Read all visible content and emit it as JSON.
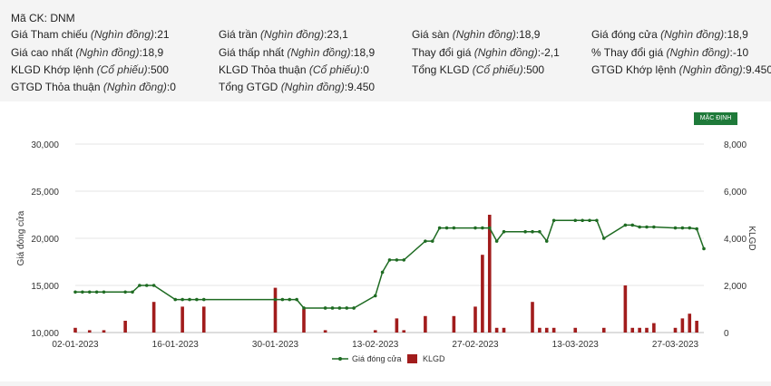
{
  "stock": {
    "ticker_line": "Mã CK: DNM",
    "fields": [
      {
        "label": "Giá Tham chiếu",
        "unit": "(Nghìn đồng)",
        "value": "21"
      },
      {
        "label": "Giá trần",
        "unit": "(Nghìn đồng)",
        "value": "23,1"
      },
      {
        "label": "Giá sàn",
        "unit": "(Nghìn đồng)",
        "value": "18,9"
      },
      {
        "label": "Giá đóng cửa",
        "unit": "(Nghìn đồng)",
        "value": "18,9"
      },
      {
        "label": "Giá cao nhất",
        "unit": "(Nghìn đồng)",
        "value": "18,9"
      },
      {
        "label": "Giá thấp nhất",
        "unit": "(Nghìn đồng)",
        "value": "18,9"
      },
      {
        "label": "Thay đổi giá",
        "unit": "(Nghìn đồng)",
        "value": "-2,1"
      },
      {
        "label": "% Thay đổi giá",
        "unit": "(Nghìn đồng)",
        "value": "-10"
      },
      {
        "label": "KLGD Khớp lệnh",
        "unit": "(Cổ phiếu)",
        "value": "500"
      },
      {
        "label": "KLGD Thỏa thuận",
        "unit": "(Cổ phiếu)",
        "value": "0"
      },
      {
        "label": "Tổng KLGD",
        "unit": "(Cổ phiếu)",
        "value": "500"
      },
      {
        "label": "GTGD Khớp lệnh",
        "unit": "(Nghìn đồng)",
        "value": "9.450"
      },
      {
        "label": "GTGD Thỏa thuận",
        "unit": "(Nghìn đồng)",
        "value": "0"
      },
      {
        "label": "Tổng GTGD",
        "unit": "(Nghìn đồng)",
        "value": "9.450"
      }
    ]
  },
  "default_button": "MẶC ĐỊNH",
  "chart_data": {
    "type": "bar+line",
    "ylabel_left": "Giá đóng cửa",
    "ylabel_right": "KLGD",
    "ylim_left": [
      10000,
      30000
    ],
    "ylim_right": [
      0,
      8000
    ],
    "y_ticks_left": [
      "10,000",
      "15,000",
      "20,000",
      "25,000",
      "30,000"
    ],
    "y_ticks_right": [
      "0",
      "2,000",
      "4,000",
      "6,000",
      "8,000"
    ],
    "x_ticks": [
      "02-01-2023",
      "16-01-2023",
      "30-01-2023",
      "13-02-2023",
      "27-02-2023",
      "13-03-2023",
      "27-03-2023"
    ],
    "date_range": [
      "2023-01-02",
      "2023-03-31"
    ],
    "legend": [
      "Giá đóng cửa",
      "KLGD"
    ],
    "colors": {
      "line": "#1e6b22",
      "bar": "#a11c1c",
      "grid": "#e6e6e6"
    },
    "price": [
      [
        "2023-01-02",
        14300
      ],
      [
        "2023-01-03",
        14300
      ],
      [
        "2023-01-04",
        14300
      ],
      [
        "2023-01-05",
        14300
      ],
      [
        "2023-01-06",
        14300
      ],
      [
        "2023-01-09",
        14300
      ],
      [
        "2023-01-10",
        14300
      ],
      [
        "2023-01-11",
        15000
      ],
      [
        "2023-01-12",
        15000
      ],
      [
        "2023-01-13",
        15000
      ],
      [
        "2023-01-16",
        13500
      ],
      [
        "2023-01-17",
        13500
      ],
      [
        "2023-01-18",
        13500
      ],
      [
        "2023-01-19",
        13500
      ],
      [
        "2023-01-20",
        13500
      ],
      [
        "2023-01-30",
        13500
      ],
      [
        "2023-01-31",
        13500
      ],
      [
        "2023-02-01",
        13500
      ],
      [
        "2023-02-02",
        13500
      ],
      [
        "2023-02-03",
        12600
      ],
      [
        "2023-02-06",
        12600
      ],
      [
        "2023-02-07",
        12600
      ],
      [
        "2023-02-08",
        12600
      ],
      [
        "2023-02-09",
        12600
      ],
      [
        "2023-02-10",
        12600
      ],
      [
        "2023-02-13",
        13900
      ],
      [
        "2023-02-14",
        16400
      ],
      [
        "2023-02-15",
        17700
      ],
      [
        "2023-02-16",
        17700
      ],
      [
        "2023-02-17",
        17700
      ],
      [
        "2023-02-20",
        19700
      ],
      [
        "2023-02-21",
        19700
      ],
      [
        "2023-02-22",
        21100
      ],
      [
        "2023-02-23",
        21100
      ],
      [
        "2023-02-24",
        21100
      ],
      [
        "2023-02-27",
        21100
      ],
      [
        "2023-02-28",
        21100
      ],
      [
        "2023-03-01",
        21100
      ],
      [
        "2023-03-02",
        19700
      ],
      [
        "2023-03-03",
        20700
      ],
      [
        "2023-03-06",
        20700
      ],
      [
        "2023-03-07",
        20700
      ],
      [
        "2023-03-08",
        20700
      ],
      [
        "2023-03-09",
        19700
      ],
      [
        "2023-03-10",
        21900
      ],
      [
        "2023-03-13",
        21900
      ],
      [
        "2023-03-14",
        21900
      ],
      [
        "2023-03-15",
        21900
      ],
      [
        "2023-03-16",
        21900
      ],
      [
        "2023-03-17",
        20000
      ],
      [
        "2023-03-20",
        21400
      ],
      [
        "2023-03-21",
        21400
      ],
      [
        "2023-03-22",
        21200
      ],
      [
        "2023-03-23",
        21200
      ],
      [
        "2023-03-24",
        21200
      ],
      [
        "2023-03-27",
        21100
      ],
      [
        "2023-03-28",
        21100
      ],
      [
        "2023-03-29",
        21100
      ],
      [
        "2023-03-30",
        21000
      ],
      [
        "2023-03-31",
        18900
      ]
    ],
    "volume": [
      [
        "2023-01-02",
        200
      ],
      [
        "2023-01-04",
        100
      ],
      [
        "2023-01-06",
        100
      ],
      [
        "2023-01-09",
        500
      ],
      [
        "2023-01-13",
        1300
      ],
      [
        "2023-01-17",
        1100
      ],
      [
        "2023-01-20",
        1100
      ],
      [
        "2023-01-30",
        1900
      ],
      [
        "2023-02-03",
        1000
      ],
      [
        "2023-02-06",
        100
      ],
      [
        "2023-02-13",
        100
      ],
      [
        "2023-02-16",
        600
      ],
      [
        "2023-02-17",
        100
      ],
      [
        "2023-02-20",
        700
      ],
      [
        "2023-02-24",
        700
      ],
      [
        "2023-02-27",
        1100
      ],
      [
        "2023-02-28",
        3300
      ],
      [
        "2023-03-01",
        5000
      ],
      [
        "2023-03-02",
        200
      ],
      [
        "2023-03-03",
        200
      ],
      [
        "2023-03-07",
        1300
      ],
      [
        "2023-03-08",
        200
      ],
      [
        "2023-03-09",
        200
      ],
      [
        "2023-03-10",
        200
      ],
      [
        "2023-03-13",
        200
      ],
      [
        "2023-03-17",
        200
      ],
      [
        "2023-03-20",
        2000
      ],
      [
        "2023-03-21",
        200
      ],
      [
        "2023-03-22",
        200
      ],
      [
        "2023-03-23",
        200
      ],
      [
        "2023-03-24",
        400
      ],
      [
        "2023-03-27",
        200
      ],
      [
        "2023-03-28",
        600
      ],
      [
        "2023-03-29",
        800
      ],
      [
        "2023-03-30",
        500
      ]
    ]
  }
}
